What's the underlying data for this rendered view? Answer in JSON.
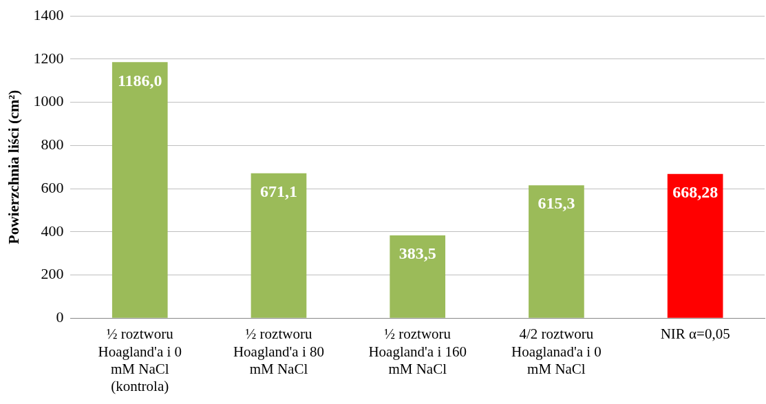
{
  "chart_data": {
    "type": "bar",
    "ylabel": "Powierzchnia liści (cm²)",
    "categories": [
      "½ roztworu Hoagland'a i 0 mM NaCl (kontrola)",
      "½ roztworu Hoagland'a i 80 mM NaCl",
      "½ roztworu Hoagland'a i 160 mM NaCl",
      "4/2 roztworu Hoaglanad'a i 0 mM NaCl",
      "NIR α=0,05"
    ],
    "values": [
      1186.0,
      671.1,
      383.5,
      615.3,
      668.28
    ],
    "value_labels": [
      "1186,0",
      "671,1",
      "383,5",
      "615,3",
      "668,28"
    ],
    "colors": [
      "#9bbb59",
      "#9bbb59",
      "#9bbb59",
      "#9bbb59",
      "#ff0000"
    ],
    "ylim": [
      0,
      1400
    ],
    "yticks": [
      0,
      200,
      400,
      600,
      800,
      1000,
      1200,
      1400
    ],
    "grid": "y"
  }
}
